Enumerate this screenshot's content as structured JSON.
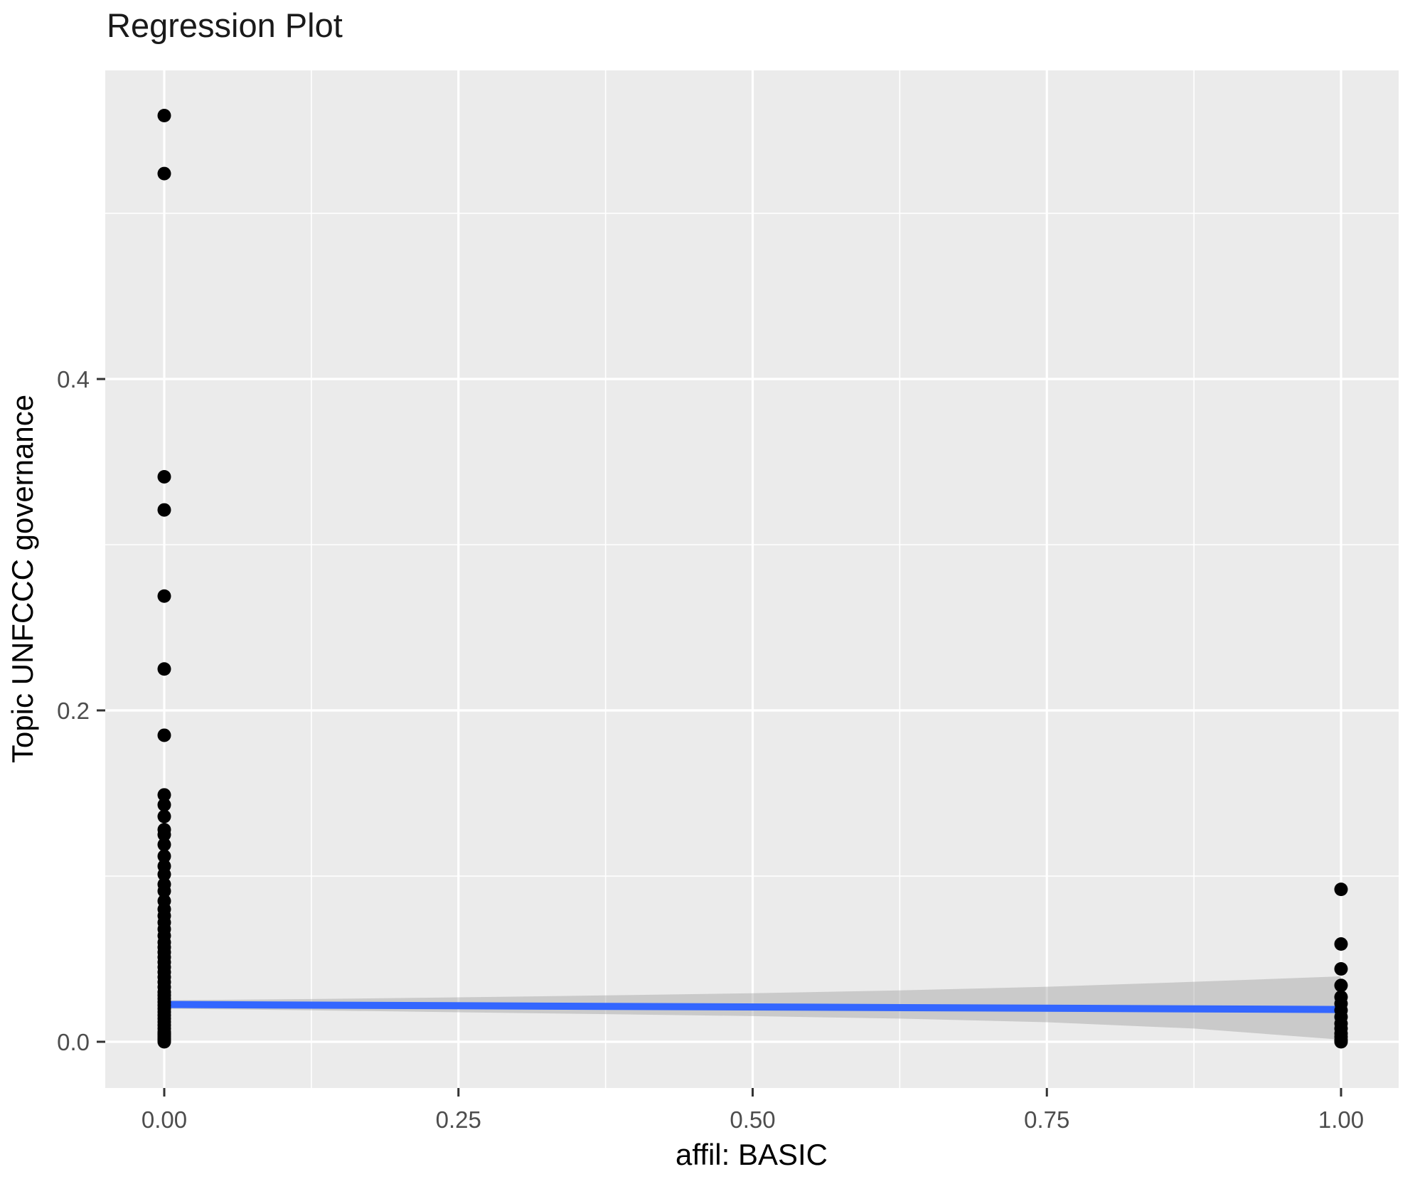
{
  "title": "Regression Plot",
  "colors": {
    "panel_bg": "#EBEBEB",
    "grid_major": "#FFFFFF",
    "grid_minor": "#FFFFFF",
    "point": "#000000",
    "regression_line": "#3366FF",
    "ci_band_fill": "#999999",
    "ci_band_alpha": 0.4,
    "tick_mark": "#333333",
    "tick_label": "#4D4D4D",
    "title_text": "#1A1A1A",
    "axis_title_text": "#000000"
  },
  "chart_data": {
    "type": "scatter",
    "title": "Regression Plot",
    "xlabel": "affil: BASIC",
    "ylabel": "Topic UNFCCC governance",
    "grid": true,
    "legend_position": "none",
    "xlim": [
      -0.05,
      1.05
    ],
    "ylim": [
      -0.028,
      0.586
    ],
    "x_tick_labels": [
      "0.00",
      "0.25",
      "0.50",
      "0.75",
      "1.00"
    ],
    "x_tick_values": [
      0,
      0.25,
      0.5,
      0.75,
      1.0
    ],
    "y_tick_labels": [
      "0.0",
      "0.2",
      "0.4"
    ],
    "y_tick_values": [
      0,
      0.2,
      0.4
    ],
    "x_minor_values": [
      0.125,
      0.375,
      0.625,
      0.875
    ],
    "y_minor_values": [
      0.1,
      0.3,
      0.5
    ],
    "series": [
      {
        "name": "observations-x0",
        "x": 0,
        "y": [
          0.559,
          0.524,
          0.341,
          0.321,
          0.269,
          0.225,
          0.185,
          0.149,
          0.143,
          0.136,
          0.128,
          0.125,
          0.119,
          0.112,
          0.106,
          0.101,
          0.095,
          0.091,
          0.085,
          0.08,
          0.076,
          0.072,
          0.068,
          0.064,
          0.06,
          0.057,
          0.054,
          0.051,
          0.048,
          0.045,
          0.042,
          0.039,
          0.036,
          0.033,
          0.03,
          0.028,
          0.026,
          0.024,
          0.022,
          0.02,
          0.018,
          0.016,
          0.014,
          0.012,
          0.01,
          0.008,
          0.006,
          0.005,
          0.004,
          0.003,
          0.002,
          0.001,
          0.0
        ]
      },
      {
        "name": "observations-x1",
        "x": 1,
        "y": [
          0.092,
          0.059,
          0.044,
          0.034,
          0.027,
          0.023,
          0.019,
          0.015,
          0.011,
          0.008,
          0.005,
          0.003,
          0.001,
          0.0
        ]
      }
    ],
    "regression_line": {
      "x": [
        0,
        1
      ],
      "y": [
        0.0225,
        0.0195
      ]
    },
    "confidence_band": {
      "x": [
        0,
        0.125,
        0.25,
        0.375,
        0.5,
        0.625,
        0.75,
        0.875,
        1.0
      ],
      "upper": [
        0.025,
        0.0258,
        0.0268,
        0.028,
        0.0293,
        0.031,
        0.0332,
        0.0362,
        0.0395
      ],
      "lower": [
        0.02,
        0.019,
        0.0178,
        0.0167,
        0.0155,
        0.014,
        0.0118,
        0.008,
        0.0013
      ]
    }
  }
}
